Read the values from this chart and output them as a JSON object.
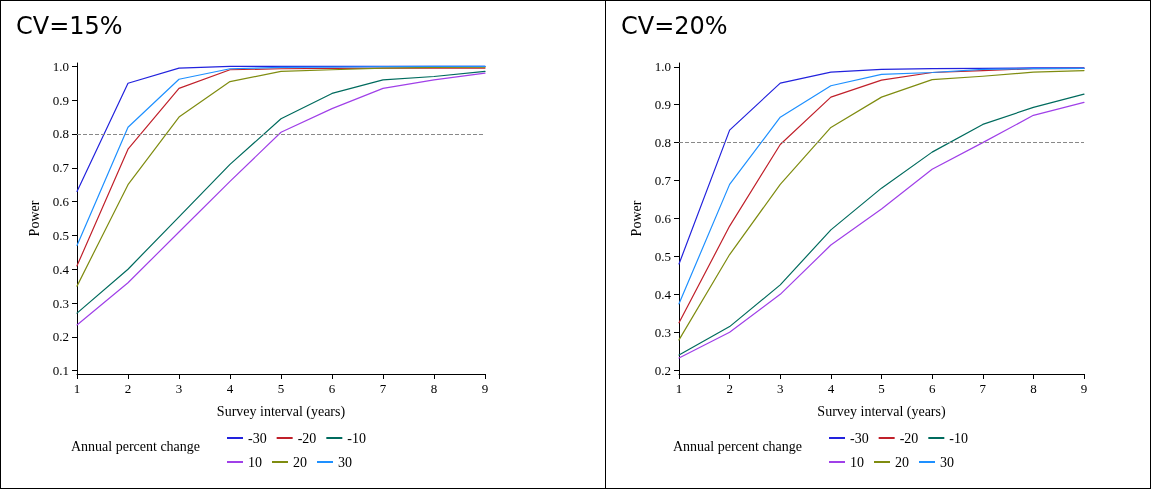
{
  "chart_data": [
    {
      "type": "line",
      "title": "CV=15%",
      "xlabel": "Survey interval (years)",
      "ylabel": "Power",
      "legend_title": "Annual percent change",
      "legend": "bottom",
      "grid": false,
      "marker": "none",
      "line_style": "solid",
      "x": [
        1,
        2,
        3,
        4,
        5,
        6,
        7,
        8,
        9
      ],
      "xlim": [
        1,
        9
      ],
      "xticks": [
        1,
        2,
        3,
        4,
        5,
        6,
        7,
        8,
        9
      ],
      "ylim": [
        0.09,
        1.01
      ],
      "yticks": [
        0.1,
        0.2,
        0.3,
        0.4,
        0.5,
        0.6,
        0.7,
        0.8,
        0.9,
        {
          "value": 1.0,
          "label": "1.0"
        }
      ],
      "ref_lines": [
        {
          "axis": "y",
          "value": 0.8,
          "label": null,
          "color": "#888888",
          "line_style": "dashed"
        }
      ],
      "series": [
        {
          "name": "-30",
          "color": "#2222dd",
          "values": [
            0.63,
            0.95,
            0.995,
            1.0,
            1.0,
            1.0,
            1.0,
            1.0,
            1.0
          ]
        },
        {
          "name": "-20",
          "color": "#c0202a",
          "values": [
            0.41,
            0.755,
            0.935,
            0.99,
            0.993,
            0.994,
            0.995,
            0.995,
            0.995
          ]
        },
        {
          "name": "-10",
          "color": "#006b5e",
          "values": [
            0.27,
            0.4,
            0.555,
            0.71,
            0.845,
            0.92,
            0.96,
            0.97,
            0.985
          ]
        },
        {
          "name": "10",
          "color": "#a040e8",
          "values": [
            0.235,
            0.36,
            0.51,
            0.66,
            0.805,
            0.875,
            0.935,
            0.96,
            0.98
          ]
        },
        {
          "name": "20",
          "color": "#7f8c10",
          "values": [
            0.35,
            0.65,
            0.85,
            0.955,
            0.985,
            0.99,
            0.995,
            0.997,
            0.998
          ]
        },
        {
          "name": "30",
          "color": "#1e90ff",
          "values": [
            0.47,
            0.82,
            0.962,
            0.993,
            0.997,
            0.998,
            0.999,
            1.0,
            1.0
          ]
        }
      ]
    },
    {
      "type": "line",
      "title": "CV=20%",
      "xlabel": "Survey interval (years)",
      "ylabel": "Power",
      "legend_title": "Annual percent change",
      "legend": "bottom",
      "grid": false,
      "marker": "none",
      "line_style": "solid",
      "x": [
        1,
        2,
        3,
        4,
        5,
        6,
        7,
        8,
        9
      ],
      "xlim": [
        1,
        9
      ],
      "xticks": [
        1,
        2,
        3,
        4,
        5,
        6,
        7,
        8,
        9
      ],
      "ylim": [
        0.19,
        1.01
      ],
      "yticks": [
        0.2,
        0.3,
        0.4,
        0.5,
        0.6,
        0.7,
        0.8,
        0.9,
        {
          "value": 1.0,
          "label": "1.0"
        }
      ],
      "ref_lines": [
        {
          "axis": "y",
          "value": 0.8,
          "label": null,
          "color": "#888888",
          "line_style": "dashed"
        }
      ],
      "series": [
        {
          "name": "-30",
          "color": "#2222dd",
          "values": [
            0.48,
            0.833,
            0.957,
            0.986,
            0.993,
            0.995,
            0.996,
            0.997,
            0.997
          ]
        },
        {
          "name": "-20",
          "color": "#c0202a",
          "values": [
            0.325,
            0.58,
            0.795,
            0.92,
            0.965,
            0.985,
            0.99,
            0.995,
            0.996
          ]
        },
        {
          "name": "-10",
          "color": "#006b5e",
          "values": [
            0.24,
            0.315,
            0.425,
            0.57,
            0.68,
            0.775,
            0.848,
            0.893,
            0.928
          ]
        },
        {
          "name": "10",
          "color": "#a040e8",
          "values": [
            0.232,
            0.3,
            0.4,
            0.53,
            0.625,
            0.73,
            0.8,
            0.872,
            0.906
          ]
        },
        {
          "name": "20",
          "color": "#7f8c10",
          "values": [
            0.28,
            0.505,
            0.69,
            0.84,
            0.92,
            0.966,
            0.975,
            0.986,
            0.99
          ]
        },
        {
          "name": "30",
          "color": "#1e90ff",
          "values": [
            0.375,
            0.69,
            0.867,
            0.95,
            0.98,
            0.985,
            0.993,
            0.995,
            0.996
          ]
        }
      ]
    }
  ]
}
